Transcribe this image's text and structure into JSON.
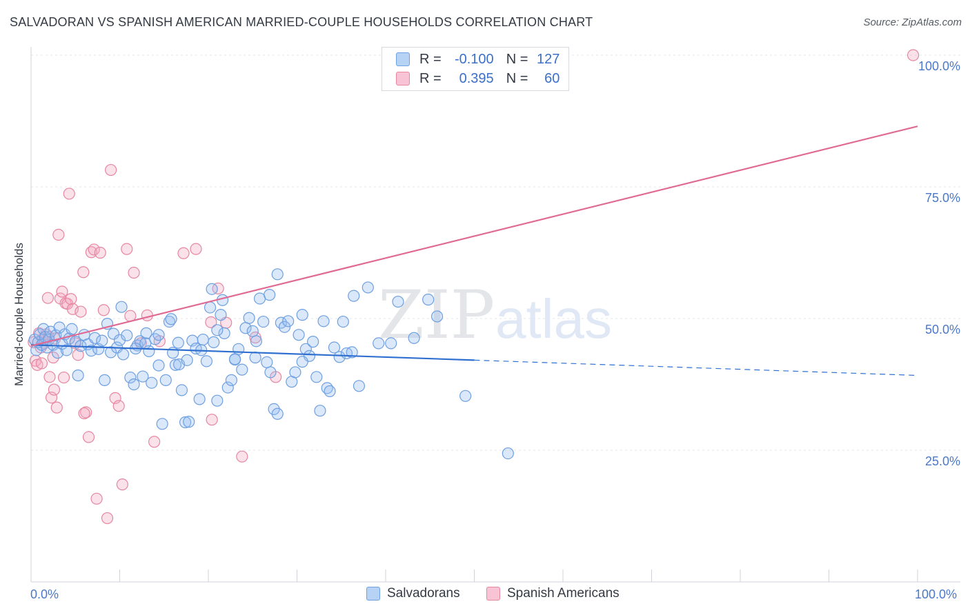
{
  "title": "SALVADORAN VS SPANISH AMERICAN MARRIED-COUPLE HOUSEHOLDS CORRELATION CHART",
  "source": "Source: ZipAtlas.com",
  "watermark": {
    "zip": "ZIP",
    "atlas": "atlas"
  },
  "legend": {
    "r_label": "R =",
    "n_label": "N =",
    "rows": [
      {
        "r": "-0.100",
        "n": "127",
        "color": "#6e9fe0"
      },
      {
        "r": "0.395",
        "n": "60",
        "color": "#e6869f"
      }
    ]
  },
  "bottom_legend": [
    "Salvadorans",
    "Spanish Americans"
  ],
  "chart_data": {
    "type": "scatter",
    "title": "SALVADORAN VS SPANISH AMERICAN MARRIED-COUPLE HOUSEHOLDS CORRELATION CHART",
    "xlabel": "",
    "ylabel": "Married-couple Households",
    "xlim": [
      0,
      100
    ],
    "ylim": [
      0,
      100
    ],
    "x_ticks": [
      "0.0%",
      "100.0%"
    ],
    "y_ticks": [
      "25.0%",
      "50.0%",
      "75.0%",
      "100.0%"
    ],
    "grid": true,
    "colors": {
      "Salvadorans": "#6e9fe0",
      "Spanish Americans": "#e6869f",
      "blue_line": "#2f6fd0",
      "pink_line": "#e06a94"
    },
    "series": [
      {
        "name": "Salvadorans",
        "trend": {
          "x": [
            0,
            50
          ],
          "y": [
            45.0,
            42.1
          ],
          "dashed_to": [
            100,
            39.2
          ]
        },
        "points": [
          [
            0.4,
            46
          ],
          [
            0.6,
            44
          ],
          [
            0.8,
            45.5
          ],
          [
            1.0,
            47
          ],
          [
            1.2,
            45
          ],
          [
            1.4,
            48
          ],
          [
            1.6,
            46.5
          ],
          [
            1.8,
            44.5
          ],
          [
            2.0,
            46
          ],
          [
            2.2,
            47.5
          ],
          [
            2.5,
            45
          ],
          [
            2.8,
            46.8
          ],
          [
            3.0,
            43.5
          ],
          [
            3.2,
            48.3
          ],
          [
            3.5,
            45.2
          ],
          [
            3.8,
            47
          ],
          [
            4.0,
            44
          ],
          [
            4.3,
            46.2
          ],
          [
            4.6,
            48
          ],
          [
            5.0,
            45.6
          ],
          [
            5.3,
            39.2
          ],
          [
            5.6,
            44.8
          ],
          [
            6.0,
            46.9
          ],
          [
            6.4,
            45.1
          ],
          [
            6.8,
            43.9
          ],
          [
            7.2,
            46.3
          ],
          [
            7.6,
            44.2
          ],
          [
            8.0,
            45.8
          ],
          [
            8.3,
            38.3
          ],
          [
            8.6,
            49
          ],
          [
            9.0,
            43.6
          ],
          [
            9.3,
            47.1
          ],
          [
            9.7,
            44.5
          ],
          [
            10.0,
            45.9
          ],
          [
            10.4,
            43.2
          ],
          [
            10.8,
            46.8
          ],
          [
            11.2,
            38.8
          ],
          [
            11.6,
            37.5
          ],
          [
            12.0,
            44.9
          ],
          [
            12.3,
            45.7
          ],
          [
            12.6,
            39
          ],
          [
            13.0,
            47.2
          ],
          [
            13.3,
            43.8
          ],
          [
            13.6,
            37.8
          ],
          [
            14.0,
            46.1
          ],
          [
            14.4,
            41.1
          ],
          [
            14.8,
            30
          ],
          [
            15.2,
            38.3
          ],
          [
            15.6,
            49.4
          ],
          [
            16.0,
            43.5
          ],
          [
            16.3,
            41.2
          ],
          [
            16.7,
            41.3
          ],
          [
            17.0,
            36.4
          ],
          [
            17.4,
            30.3
          ],
          [
            17.8,
            30.4
          ],
          [
            18.2,
            45.8
          ],
          [
            18.6,
            44.3
          ],
          [
            19.0,
            34.7
          ],
          [
            19.4,
            46
          ],
          [
            19.8,
            41.9
          ],
          [
            20.2,
            52.1
          ],
          [
            20.6,
            45.5
          ],
          [
            21.0,
            34.4
          ],
          [
            21.4,
            50.7
          ],
          [
            21.8,
            47.2
          ],
          [
            22.2,
            36.9
          ],
          [
            22.6,
            38.3
          ],
          [
            23.0,
            42.2
          ],
          [
            23.4,
            44.2
          ],
          [
            23.8,
            40.3
          ],
          [
            24.2,
            48.2
          ],
          [
            24.6,
            50.1
          ],
          [
            25.0,
            47.6
          ],
          [
            25.4,
            45.7
          ],
          [
            25.8,
            53.8
          ],
          [
            26.2,
            49.4
          ],
          [
            26.6,
            41.7
          ],
          [
            27.0,
            39.8
          ],
          [
            27.4,
            32.8
          ],
          [
            27.8,
            31.9
          ],
          [
            28.2,
            49.2
          ],
          [
            28.6,
            48.4
          ],
          [
            29.0,
            49.5
          ],
          [
            29.4,
            38
          ],
          [
            29.8,
            39.8
          ],
          [
            30.2,
            46.9
          ],
          [
            30.6,
            50.7
          ],
          [
            31.0,
            44.2
          ],
          [
            31.4,
            42.9
          ],
          [
            31.8,
            45.6
          ],
          [
            32.2,
            38.9
          ],
          [
            32.6,
            32.5
          ],
          [
            33.0,
            49.5
          ],
          [
            33.4,
            36.8
          ],
          [
            34.2,
            44.5
          ],
          [
            34.8,
            42.7
          ],
          [
            35.2,
            49.4
          ],
          [
            35.6,
            43.4
          ],
          [
            36.4,
            54.3
          ],
          [
            37.0,
            37.2
          ],
          [
            38.0,
            55.9
          ],
          [
            39.2,
            45.3
          ],
          [
            40.6,
            45.3
          ],
          [
            41.4,
            53.2
          ],
          [
            43.2,
            46.3
          ],
          [
            44.8,
            53.6
          ],
          [
            45.8,
            50.4
          ],
          [
            49.0,
            35.3
          ],
          [
            53.8,
            24.4
          ],
          [
            20.4,
            55.6
          ],
          [
            21.6,
            53.5
          ],
          [
            27.8,
            58.4
          ],
          [
            26.9,
            54.5
          ],
          [
            19.2,
            44
          ],
          [
            14.4,
            46.9
          ],
          [
            12.9,
            45.3
          ],
          [
            17.6,
            42.1
          ],
          [
            23.0,
            42.3
          ],
          [
            30.6,
            41.8
          ],
          [
            10.2,
            52.2
          ],
          [
            11.8,
            44.3
          ],
          [
            15.8,
            49.9
          ],
          [
            21.0,
            47.8
          ],
          [
            25.3,
            42.6
          ],
          [
            33.7,
            36.2
          ],
          [
            36.2,
            43.6
          ],
          [
            16.6,
            45.4
          ]
        ]
      },
      {
        "name": "Spanish Americans",
        "trend": {
          "x": [
            0,
            100
          ],
          "y": [
            44.8,
            86.5
          ]
        },
        "points": [
          [
            0.3,
            45.5
          ],
          [
            0.5,
            42
          ],
          [
            0.7,
            41.2
          ],
          [
            0.9,
            47.2
          ],
          [
            1.1,
            44.5
          ],
          [
            1.3,
            46.1
          ],
          [
            1.5,
            45.3
          ],
          [
            1.7,
            47
          ],
          [
            1.9,
            53.9
          ],
          [
            2.1,
            38.9
          ],
          [
            2.3,
            35
          ],
          [
            2.5,
            42.6
          ],
          [
            2.7,
            46.2
          ],
          [
            2.9,
            33.1
          ],
          [
            3.1,
            65.9
          ],
          [
            3.3,
            53.8
          ],
          [
            3.5,
            55.1
          ],
          [
            3.7,
            38.8
          ],
          [
            3.9,
            52.9
          ],
          [
            4.1,
            52.8
          ],
          [
            4.3,
            73.7
          ],
          [
            4.5,
            53.7
          ],
          [
            4.7,
            51.8
          ],
          [
            5.0,
            45.3
          ],
          [
            5.3,
            43.1
          ],
          [
            5.6,
            51.3
          ],
          [
            5.9,
            58.8
          ],
          [
            6.2,
            32.2
          ],
          [
            6.5,
            27.5
          ],
          [
            6.8,
            62.6
          ],
          [
            7.1,
            63.1
          ],
          [
            7.4,
            15.8
          ],
          [
            7.8,
            62.5
          ],
          [
            8.2,
            51.6
          ],
          [
            8.6,
            12.1
          ],
          [
            9.0,
            78.2
          ],
          [
            9.5,
            34.9
          ],
          [
            9.9,
            33.4
          ],
          [
            10.3,
            18.5
          ],
          [
            10.8,
            63.2
          ],
          [
            11.2,
            50.5
          ],
          [
            11.6,
            58.7
          ],
          [
            12.4,
            45.3
          ],
          [
            13.1,
            50.6
          ],
          [
            13.9,
            26.6
          ],
          [
            14.5,
            45.7
          ],
          [
            17.2,
            62.4
          ],
          [
            18.6,
            63.2
          ],
          [
            20.3,
            49.3
          ],
          [
            20.4,
            30.8
          ],
          [
            21.1,
            55.7
          ],
          [
            22.0,
            49.2
          ],
          [
            23.8,
            23.8
          ],
          [
            25.3,
            46.4
          ],
          [
            27.6,
            38.9
          ],
          [
            1.2,
            41.5
          ],
          [
            2.0,
            46.5
          ],
          [
            2.6,
            36.5
          ],
          [
            6.0,
            32
          ],
          [
            99.5,
            100
          ]
        ]
      }
    ]
  }
}
